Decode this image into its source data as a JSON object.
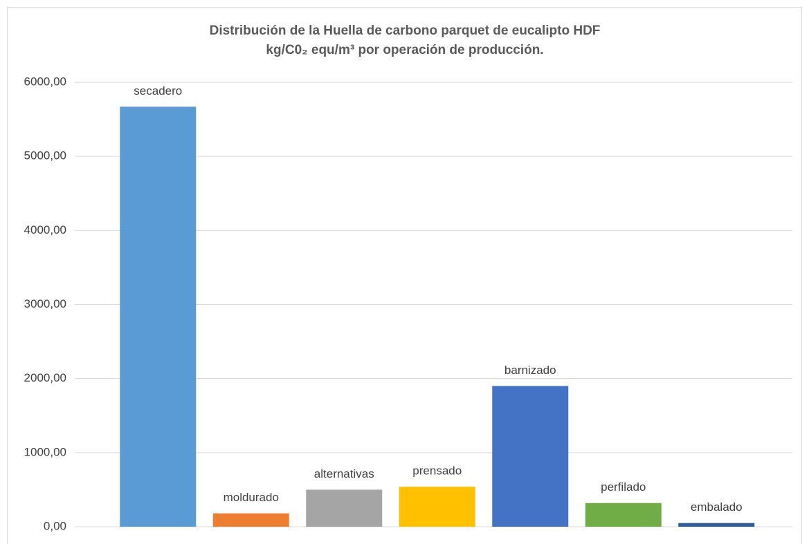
{
  "chart_data": {
    "type": "bar",
    "title": [
      "Distribución de la Huella de carbono parquet de eucalipto HDF",
      "kg/C0₂ equ/m³ por operación de producción."
    ],
    "categories": [
      "secadero",
      "moldurado",
      "alternativas",
      "prensado",
      "barnizado",
      "perfilado",
      "embalado"
    ],
    "values": [
      5670,
      180,
      500,
      540,
      1900,
      320,
      50
    ],
    "colors": [
      "#5b9bd5",
      "#ed7d31",
      "#a5a5a5",
      "#ffc000",
      "#4472c4",
      "#70ad47",
      "#2f5c9a"
    ],
    "ylim": [
      0,
      6000
    ],
    "yticks": [
      {
        "value": 0,
        "label": "0,00"
      },
      {
        "value": 1000,
        "label": "1000,00"
      },
      {
        "value": 2000,
        "label": "2000,00"
      },
      {
        "value": 3000,
        "label": "3000,00"
      },
      {
        "value": 4000,
        "label": "4000,00"
      },
      {
        "value": 5000,
        "label": "5000,00"
      },
      {
        "value": 6000,
        "label": "6000,00"
      }
    ],
    "grid": true
  }
}
